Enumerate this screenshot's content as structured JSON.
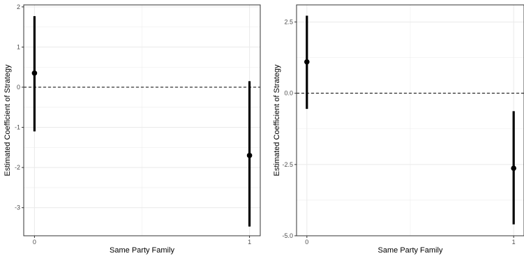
{
  "chart_data": [
    {
      "type": "scatter",
      "title": "",
      "xlabel": "Same Party Family",
      "ylabel": "Estimated Coefficient of Strategy",
      "x_ticks": [
        0,
        1
      ],
      "x_tick_labels": [
        "0",
        "1"
      ],
      "y_ticks": [
        -3,
        -2,
        -1,
        0,
        1,
        2
      ],
      "y_tick_labels": [
        "-3",
        "-2",
        "-1",
        "0",
        "1",
        "2"
      ],
      "xlim": [
        -0.05,
        1.05
      ],
      "ylim": [
        -3.7,
        2.05
      ],
      "reference_line": 0,
      "grid": true,
      "points": [
        {
          "x": 0,
          "y": 0.35,
          "lower": -1.1,
          "upper": 1.77
        },
        {
          "x": 1,
          "y": -1.7,
          "lower": -3.47,
          "upper": 0.15
        }
      ]
    },
    {
      "type": "scatter",
      "title": "",
      "xlabel": "Same Party Family",
      "ylabel": "Estimated Coefficient of Strategy",
      "x_ticks": [
        0,
        1
      ],
      "x_tick_labels": [
        "0",
        "1"
      ],
      "y_ticks": [
        -5.0,
        -2.5,
        0.0,
        2.5
      ],
      "y_tick_labels": [
        "-5.0",
        "-2.5",
        "0.0",
        "2.5"
      ],
      "xlim": [
        -0.05,
        1.05
      ],
      "ylim": [
        -5.0,
        3.1
      ],
      "reference_line": 0,
      "grid": true,
      "points": [
        {
          "x": 0,
          "y": 1.1,
          "lower": -0.55,
          "upper": 2.72
        },
        {
          "x": 1,
          "y": -2.63,
          "lower": -4.6,
          "upper": -0.63
        }
      ]
    }
  ],
  "colors": {
    "panel_border": "#333333",
    "grid": "#ebebeb",
    "marks": "#000000",
    "tick_text": "#4d4d4d"
  }
}
